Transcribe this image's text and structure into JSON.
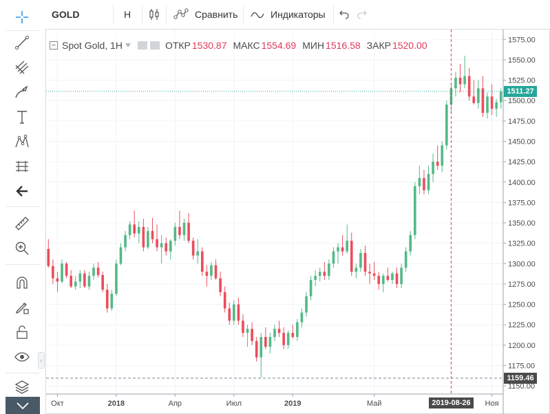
{
  "header": {
    "symbol": "GOLD",
    "interval": "H",
    "compare_label": "Сравнить",
    "indicators_label": "Индикаторы"
  },
  "legend": {
    "title": "Spot Gold, 1H",
    "open_label": "ОТКР",
    "open_value": "1530.87",
    "high_label": "МАКС",
    "high_value": "1554.69",
    "low_label": "МИН",
    "low_value": "1516.58",
    "close_label": "ЗАКР",
    "close_value": "1520.00"
  },
  "price_tags": {
    "last": "1511.27",
    "crosshair": "1159.46",
    "last_color": "#26a69a",
    "crosshair_color": "#4a4a4a"
  },
  "crosshair_date": "2019-08-26",
  "colors": {
    "up": "#53b987",
    "down": "#eb4d5c",
    "grid": "#f0f3fa",
    "last_line": "#26a69a"
  },
  "toolbar_icons": [
    "crosshair-icon",
    "trend-line-icon",
    "pitchfork-icon",
    "brush-icon",
    "text-icon",
    "pattern-icon",
    "prediction-icon",
    "back-arrow-icon",
    "ruler-icon",
    "zoom-in-icon",
    "magnet-icon",
    "lock-drawing-icon",
    "unlock-icon",
    "eye-icon",
    "layers-icon"
  ],
  "chart_data": {
    "type": "candlestick",
    "title": "Spot Gold, 1H",
    "y_ticks": [
      1150,
      1175,
      1200,
      1225,
      1250,
      1275,
      1300,
      1325,
      1350,
      1375,
      1400,
      1425,
      1450,
      1475,
      1500,
      1525,
      1550,
      1575
    ],
    "y_tick_labels": [
      "1150.00",
      "1175.00",
      "1200.00",
      "1225.00",
      "1250.00",
      "1275.00",
      "1300.00",
      "1325.00",
      "1350.00",
      "1375.00",
      "1400.00",
      "1425.00",
      "1450.00",
      "1475.00",
      "1500.00",
      "1525.00",
      "1550.00",
      "1575.00"
    ],
    "ylim": [
      1140,
      1582
    ],
    "x_labels": [
      {
        "label": "Окт",
        "idx": 2
      },
      {
        "label": "2018",
        "idx": 15
      },
      {
        "label": "Апр",
        "idx": 28
      },
      {
        "label": "Июл",
        "idx": 41
      },
      {
        "label": "2019",
        "idx": 54
      },
      {
        "label": "Май",
        "idx": 72
      },
      {
        "label": "Ноя",
        "idx": 98
      }
    ],
    "crosshair": {
      "idx": 89,
      "price": 1159.46
    },
    "last_price": 1511.27,
    "candles": [
      [
        1318,
        1330,
        1295,
        1297
      ],
      [
        1297,
        1305,
        1275,
        1282
      ],
      [
        1282,
        1290,
        1265,
        1278
      ],
      [
        1278,
        1305,
        1276,
        1300
      ],
      [
        1300,
        1302,
        1282,
        1285
      ],
      [
        1285,
        1292,
        1270,
        1272
      ],
      [
        1272,
        1285,
        1268,
        1278
      ],
      [
        1278,
        1292,
        1270,
        1288
      ],
      [
        1288,
        1292,
        1270,
        1272
      ],
      [
        1272,
        1290,
        1268,
        1285
      ],
      [
        1285,
        1300,
        1280,
        1295
      ],
      [
        1295,
        1302,
        1283,
        1286
      ],
      [
        1286,
        1290,
        1265,
        1268
      ],
      [
        1268,
        1275,
        1240,
        1245
      ],
      [
        1245,
        1268,
        1242,
        1263
      ],
      [
        1263,
        1305,
        1260,
        1300
      ],
      [
        1300,
        1325,
        1298,
        1320
      ],
      [
        1320,
        1340,
        1315,
        1335
      ],
      [
        1335,
        1352,
        1330,
        1348
      ],
      [
        1348,
        1365,
        1332,
        1337
      ],
      [
        1337,
        1352,
        1325,
        1345
      ],
      [
        1345,
        1355,
        1315,
        1320
      ],
      [
        1320,
        1345,
        1318,
        1340
      ],
      [
        1340,
        1356,
        1325,
        1330
      ],
      [
        1330,
        1348,
        1315,
        1320
      ],
      [
        1320,
        1335,
        1300,
        1325
      ],
      [
        1325,
        1332,
        1310,
        1315
      ],
      [
        1315,
        1330,
        1305,
        1328
      ],
      [
        1328,
        1350,
        1322,
        1345
      ],
      [
        1345,
        1365,
        1330,
        1335
      ],
      [
        1335,
        1355,
        1328,
        1350
      ],
      [
        1350,
        1362,
        1325,
        1328
      ],
      [
        1328,
        1332,
        1305,
        1310
      ],
      [
        1310,
        1330,
        1300,
        1315
      ],
      [
        1315,
        1320,
        1285,
        1290
      ],
      [
        1290,
        1298,
        1272,
        1285
      ],
      [
        1285,
        1302,
        1280,
        1298
      ],
      [
        1298,
        1305,
        1280,
        1282
      ],
      [
        1282,
        1290,
        1260,
        1265
      ],
      [
        1265,
        1272,
        1240,
        1245
      ],
      [
        1245,
        1252,
        1225,
        1230
      ],
      [
        1230,
        1255,
        1225,
        1250
      ],
      [
        1250,
        1258,
        1225,
        1230
      ],
      [
        1230,
        1238,
        1210,
        1215
      ],
      [
        1215,
        1225,
        1198,
        1220
      ],
      [
        1220,
        1228,
        1200,
        1205
      ],
      [
        1205,
        1210,
        1180,
        1185
      ],
      [
        1185,
        1215,
        1160,
        1210
      ],
      [
        1210,
        1222,
        1195,
        1198
      ],
      [
        1198,
        1215,
        1190,
        1210
      ],
      [
        1210,
        1225,
        1205,
        1220
      ],
      [
        1220,
        1230,
        1210,
        1215
      ],
      [
        1215,
        1222,
        1195,
        1200
      ],
      [
        1200,
        1218,
        1196,
        1215
      ],
      [
        1215,
        1225,
        1208,
        1210
      ],
      [
        1210,
        1232,
        1205,
        1228
      ],
      [
        1228,
        1245,
        1222,
        1240
      ],
      [
        1240,
        1265,
        1235,
        1260
      ],
      [
        1260,
        1285,
        1255,
        1280
      ],
      [
        1280,
        1292,
        1272,
        1285
      ],
      [
        1285,
        1295,
        1278,
        1290
      ],
      [
        1290,
        1302,
        1280,
        1285
      ],
      [
        1285,
        1305,
        1280,
        1300
      ],
      [
        1300,
        1320,
        1295,
        1315
      ],
      [
        1315,
        1325,
        1300,
        1320
      ],
      [
        1320,
        1335,
        1310,
        1315
      ],
      [
        1315,
        1348,
        1312,
        1328
      ],
      [
        1328,
        1338,
        1285,
        1290
      ],
      [
        1290,
        1300,
        1282,
        1295
      ],
      [
        1295,
        1318,
        1290,
        1313
      ],
      [
        1313,
        1322,
        1285,
        1290
      ],
      [
        1290,
        1300,
        1275,
        1288
      ],
      [
        1288,
        1302,
        1280,
        1285
      ],
      [
        1285,
        1290,
        1268,
        1275
      ],
      [
        1275,
        1288,
        1265,
        1285
      ],
      [
        1285,
        1295,
        1278,
        1280
      ],
      [
        1280,
        1290,
        1275,
        1288
      ],
      [
        1288,
        1295,
        1270,
        1275
      ],
      [
        1275,
        1300,
        1270,
        1295
      ],
      [
        1295,
        1320,
        1290,
        1315
      ],
      [
        1315,
        1340,
        1310,
        1335
      ],
      [
        1335,
        1400,
        1330,
        1395
      ],
      [
        1395,
        1420,
        1385,
        1405
      ],
      [
        1405,
        1415,
        1385,
        1390
      ],
      [
        1390,
        1420,
        1385,
        1410
      ],
      [
        1410,
        1435,
        1400,
        1425
      ],
      [
        1425,
        1445,
        1415,
        1420
      ],
      [
        1420,
        1450,
        1412,
        1445
      ],
      [
        1445,
        1500,
        1440,
        1495
      ],
      [
        1495,
        1520,
        1485,
        1515
      ],
      [
        1515,
        1535,
        1505,
        1528
      ],
      [
        1528,
        1545,
        1510,
        1520
      ],
      [
        1520,
        1555,
        1515,
        1530
      ],
      [
        1530,
        1540,
        1500,
        1505
      ],
      [
        1505,
        1525,
        1495,
        1497
      ],
      [
        1497,
        1525,
        1490,
        1515
      ],
      [
        1515,
        1530,
        1480,
        1485
      ],
      [
        1485,
        1510,
        1478,
        1505
      ],
      [
        1505,
        1520,
        1482,
        1490
      ],
      [
        1490,
        1502,
        1480,
        1498
      ],
      [
        1498,
        1515,
        1490,
        1511
      ]
    ]
  }
}
